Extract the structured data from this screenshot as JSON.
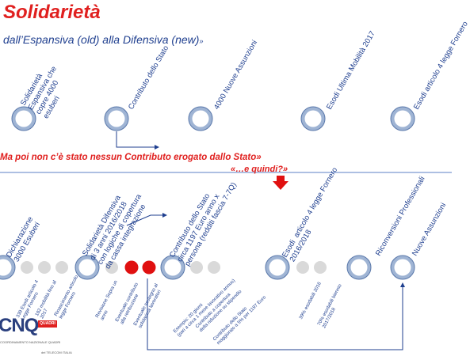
{
  "title": "Solidarietà",
  "subtitle": "dall’Espansiva (old) alla Difensiva (new)",
  "subtitle_quote": "»",
  "top_labels": [
    "Solidarietà\nEspansiva che\ncopre 4000\nesuberi",
    "Contributo dello Stato",
    "4000 Nuove Assunzioni",
    "Esodi  Ultima Mobilità 2017",
    "Esodi articolo 4 legge Fornero"
  ],
  "red_statement": "Ma poi non c’è stato nessun Contributo erogato dallo Stato»",
  "quindi": "«…e quindi?»",
  "mid_labels": [
    "Dichiarazione\n3000 Esuberi",
    "Solidarietà Difensiva\ndi 3 anni 2016/2018\ncon logiche di copertura\nda cassa integrazione",
    "Contributo dello Stato\ncirca 1197 Euro anno x\npersona (redditi fascia 7-7Q)",
    "Esodi  articolo 4 legge Fornero\n2016/2018",
    "Riconversioni Professionali",
    "Nuove Assunzioni"
  ],
  "small_labels": [
    "339 Esodi articolo 4\nLegge Fornero",
    "182 mobilità fino al\n2017",
    "Rinascimento articolo\nlegge Fornero",
    "Revisione Sopra un\nanno",
    "Eventuale contributo\nalla retribuzione",
    "Eventuale sostegno al\nsolidarietà lavoratori",
    "Esempio: 20 giorni\n(pari a circa 1 mese lavorativo annuo)",
    "Contributo a copertura\ndella riduzione su stipendio",
    "Contributo dello Stato\nmaggiorato a 5% per 1197 Euro",
    "39% esodabili 2016",
    "70% esodabili biennio\n2017/2018"
  ],
  "logo": {
    "text": "CNQ",
    "badge": "QUADRI",
    "tagline": "COORDINAMENTO NAZIONALE QUADRI",
    "footer": "del TELECOM ITALIA"
  },
  "colors": {
    "accent_red": "#e0201f",
    "navy": "#1f3f8f",
    "ring_outer": "#5a78aa",
    "ring_inner": "#9fb4d4",
    "grey_dot": "#d9d9d9",
    "red_dot": "#e01010",
    "divider": "#5b7fc4"
  }
}
